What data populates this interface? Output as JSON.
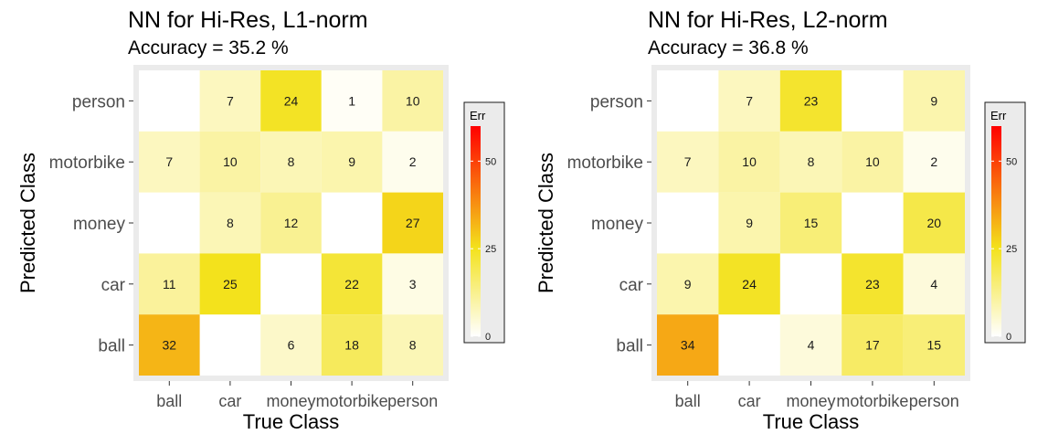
{
  "chart_data": [
    {
      "type": "heatmap",
      "title": "NN for Hi-Res, L1-norm",
      "subtitle": "Accuracy =  35.2 %",
      "xlabel": "True Class",
      "ylabel": "Predicted Class",
      "x_categories": [
        "ball",
        "car",
        "money",
        "motorbike",
        "person"
      ],
      "y_categories": [
        "ball",
        "car",
        "money",
        "motorbike",
        "person"
      ],
      "cells": [
        {
          "x": "ball",
          "y": "person",
          "value": null
        },
        {
          "x": "car",
          "y": "person",
          "value": 7
        },
        {
          "x": "money",
          "y": "person",
          "value": 24
        },
        {
          "x": "motorbike",
          "y": "person",
          "value": 1
        },
        {
          "x": "person",
          "y": "person",
          "value": 10
        },
        {
          "x": "ball",
          "y": "motorbike",
          "value": 7
        },
        {
          "x": "car",
          "y": "motorbike",
          "value": 10
        },
        {
          "x": "money",
          "y": "motorbike",
          "value": 8
        },
        {
          "x": "motorbike",
          "y": "motorbike",
          "value": 9
        },
        {
          "x": "person",
          "y": "motorbike",
          "value": 2
        },
        {
          "x": "ball",
          "y": "money",
          "value": null
        },
        {
          "x": "car",
          "y": "money",
          "value": 8
        },
        {
          "x": "money",
          "y": "money",
          "value": 12
        },
        {
          "x": "motorbike",
          "y": "money",
          "value": null
        },
        {
          "x": "person",
          "y": "money",
          "value": 27
        },
        {
          "x": "ball",
          "y": "car",
          "value": 11
        },
        {
          "x": "car",
          "y": "car",
          "value": 25
        },
        {
          "x": "money",
          "y": "car",
          "value": null
        },
        {
          "x": "motorbike",
          "y": "car",
          "value": 22
        },
        {
          "x": "person",
          "y": "car",
          "value": 3
        },
        {
          "x": "ball",
          "y": "ball",
          "value": 32
        },
        {
          "x": "car",
          "y": "ball",
          "value": null
        },
        {
          "x": "money",
          "y": "ball",
          "value": 6
        },
        {
          "x": "motorbike",
          "y": "ball",
          "value": 18
        },
        {
          "x": "person",
          "y": "ball",
          "value": 8
        }
      ],
      "color_scale": {
        "title": "Err",
        "range": [
          0,
          60
        ],
        "ticks": [
          "0",
          "25",
          "50"
        ],
        "colors": [
          "#ffffff",
          "#f3e21c",
          "#ff0000"
        ]
      },
      "diagonal_fill": "#ffffff",
      "panel_background": "#ebebeb"
    },
    {
      "type": "heatmap",
      "title": "NN for Hi-Res, L2-norm",
      "subtitle": "Accuracy =  36.8 %",
      "xlabel": "True Class",
      "ylabel": "Predicted Class",
      "x_categories": [
        "ball",
        "car",
        "money",
        "motorbike",
        "person"
      ],
      "y_categories": [
        "ball",
        "car",
        "money",
        "motorbike",
        "person"
      ],
      "cells": [
        {
          "x": "ball",
          "y": "person",
          "value": null
        },
        {
          "x": "car",
          "y": "person",
          "value": 7
        },
        {
          "x": "money",
          "y": "person",
          "value": 23
        },
        {
          "x": "motorbike",
          "y": "person",
          "value": null
        },
        {
          "x": "person",
          "y": "person",
          "value": 9
        },
        {
          "x": "ball",
          "y": "motorbike",
          "value": 7
        },
        {
          "x": "car",
          "y": "motorbike",
          "value": 10
        },
        {
          "x": "money",
          "y": "motorbike",
          "value": 8
        },
        {
          "x": "motorbike",
          "y": "motorbike",
          "value": 10
        },
        {
          "x": "person",
          "y": "motorbike",
          "value": 2
        },
        {
          "x": "ball",
          "y": "money",
          "value": null
        },
        {
          "x": "car",
          "y": "money",
          "value": 9
        },
        {
          "x": "money",
          "y": "money",
          "value": 15
        },
        {
          "x": "motorbike",
          "y": "money",
          "value": null
        },
        {
          "x": "person",
          "y": "money",
          "value": 20
        },
        {
          "x": "ball",
          "y": "car",
          "value": 9
        },
        {
          "x": "car",
          "y": "car",
          "value": 24
        },
        {
          "x": "money",
          "y": "car",
          "value": null
        },
        {
          "x": "motorbike",
          "y": "car",
          "value": 23
        },
        {
          "x": "person",
          "y": "car",
          "value": 4
        },
        {
          "x": "ball",
          "y": "ball",
          "value": 34
        },
        {
          "x": "car",
          "y": "ball",
          "value": null
        },
        {
          "x": "money",
          "y": "ball",
          "value": 4
        },
        {
          "x": "motorbike",
          "y": "ball",
          "value": 17
        },
        {
          "x": "person",
          "y": "ball",
          "value": 15
        }
      ],
      "color_scale": {
        "title": "Err",
        "range": [
          0,
          60
        ],
        "ticks": [
          "0",
          "25",
          "50"
        ],
        "colors": [
          "#ffffff",
          "#f3e21c",
          "#ff0000"
        ]
      },
      "diagonal_fill": "#ffffff",
      "panel_background": "#ebebeb"
    }
  ]
}
